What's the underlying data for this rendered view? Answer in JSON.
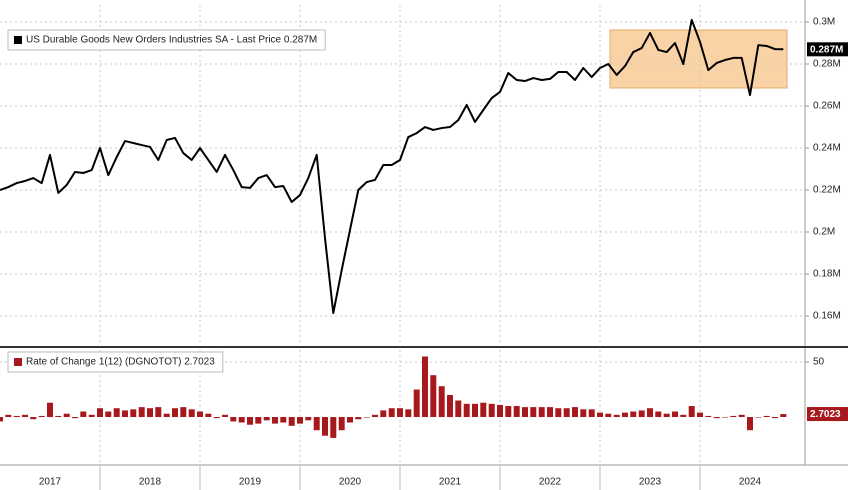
{
  "chart_data": [
    {
      "type": "line",
      "x": [
        2017,
        2017.083,
        2017.167,
        2017.25,
        2017.333,
        2017.417,
        2017.5,
        2017.583,
        2017.667,
        2017.75,
        2017.833,
        2017.917,
        2018,
        2018.083,
        2018.167,
        2018.25,
        2018.333,
        2018.417,
        2018.5,
        2018.583,
        2018.667,
        2018.75,
        2018.833,
        2018.917,
        2019,
        2019.083,
        2019.167,
        2019.25,
        2019.333,
        2019.417,
        2019.5,
        2019.583,
        2019.667,
        2019.75,
        2019.833,
        2019.917,
        2020,
        2020.083,
        2020.167,
        2020.25,
        2020.333,
        2020.417,
        2020.5,
        2020.583,
        2020.667,
        2020.75,
        2020.833,
        2020.917,
        2021,
        2021.083,
        2021.167,
        2021.25,
        2021.333,
        2021.417,
        2021.5,
        2021.583,
        2021.667,
        2021.75,
        2021.833,
        2021.917,
        2022,
        2022.083,
        2022.167,
        2022.25,
        2022.333,
        2022.417,
        2022.5,
        2022.583,
        2022.667,
        2022.75,
        2022.833,
        2022.917,
        2023,
        2023.083,
        2023.167,
        2023.25,
        2023.333,
        2023.417,
        2023.5,
        2023.583,
        2023.667,
        2023.75,
        2023.833,
        2023.917,
        2024,
        2024.083,
        2024.167,
        2024.25,
        2024.333,
        2024.417,
        2024.5,
        2024.583,
        2024.667,
        2024.75,
        2024.833
      ],
      "series": [
        {
          "name": "US Durable Goods New Orders Industries SA - Last Price 0.287M",
          "color": "#000000",
          "last_label": "0.287M",
          "values": [
            0.22,
            0.2214,
            0.2233,
            0.2243,
            0.2257,
            0.2233,
            0.2367,
            0.2186,
            0.2224,
            0.2286,
            0.2281,
            0.2295,
            0.24,
            0.2271,
            0.2357,
            0.2433,
            0.2424,
            0.2414,
            0.2405,
            0.2343,
            0.2438,
            0.2448,
            0.2376,
            0.2343,
            0.24,
            0.2343,
            0.2286,
            0.2367,
            0.2295,
            0.2214,
            0.221,
            0.2257,
            0.2271,
            0.2214,
            0.2219,
            0.2143,
            0.2176,
            0.2257,
            0.2367,
            0.1971,
            0.1614,
            0.1819,
            0.201,
            0.22,
            0.2238,
            0.2248,
            0.2319,
            0.2319,
            0.2343,
            0.2452,
            0.2471,
            0.25,
            0.2486,
            0.2495,
            0.25,
            0.2533,
            0.2605,
            0.2524,
            0.2581,
            0.2638,
            0.2667,
            0.2757,
            0.2724,
            0.2719,
            0.2733,
            0.2724,
            0.2729,
            0.2762,
            0.2762,
            0.2724,
            0.2781,
            0.2738,
            0.2781,
            0.28,
            0.2748,
            0.279,
            0.2857,
            0.2876,
            0.2948,
            0.2867,
            0.2857,
            0.29,
            0.28,
            0.301,
            0.2905,
            0.2771,
            0.2805,
            0.2819,
            0.2829,
            0.2829,
            0.2652,
            0.289,
            0.2886,
            0.2871,
            0.287
          ]
        }
      ],
      "xlim": [
        2017,
        2025.05
      ],
      "xgrid": [
        2018,
        2019,
        2020,
        2021,
        2022,
        2023,
        2024
      ],
      "ylim": [
        0.1462,
        0.3081
      ],
      "yticks": [
        {
          "value": 0.16,
          "label": "0.16M"
        },
        {
          "value": 0.18,
          "label": "0.18M"
        },
        {
          "value": 0.2,
          "label": "0.2M"
        },
        {
          "value": 0.22,
          "label": "0.22M"
        },
        {
          "value": 0.24,
          "label": "0.24M"
        },
        {
          "value": 0.26,
          "label": "0.26M"
        },
        {
          "value": 0.28,
          "label": "0.28M"
        },
        {
          "value": 0.3,
          "label": "0.3M"
        }
      ],
      "grid": true
    },
    {
      "type": "bar",
      "x": [
        2017,
        2017.083,
        2017.167,
        2017.25,
        2017.333,
        2017.417,
        2017.5,
        2017.583,
        2017.667,
        2017.75,
        2017.833,
        2017.917,
        2018,
        2018.083,
        2018.167,
        2018.25,
        2018.333,
        2018.417,
        2018.5,
        2018.583,
        2018.667,
        2018.75,
        2018.833,
        2018.917,
        2019,
        2019.083,
        2019.167,
        2019.25,
        2019.333,
        2019.417,
        2019.5,
        2019.583,
        2019.667,
        2019.75,
        2019.833,
        2019.917,
        2020,
        2020.083,
        2020.167,
        2020.25,
        2020.333,
        2020.417,
        2020.5,
        2020.583,
        2020.667,
        2020.75,
        2020.833,
        2020.917,
        2021,
        2021.083,
        2021.167,
        2021.25,
        2021.333,
        2021.417,
        2021.5,
        2021.583,
        2021.667,
        2021.75,
        2021.833,
        2021.917,
        2022,
        2022.083,
        2022.167,
        2022.25,
        2022.333,
        2022.417,
        2022.5,
        2022.583,
        2022.667,
        2022.75,
        2022.833,
        2022.917,
        2023,
        2023.083,
        2023.167,
        2023.25,
        2023.333,
        2023.417,
        2023.5,
        2023.583,
        2023.667,
        2023.75,
        2023.833,
        2023.917,
        2024,
        2024.083,
        2024.167,
        2024.25,
        2024.333,
        2024.417,
        2024.5,
        2024.583,
        2024.667,
        2024.75,
        2024.833
      ],
      "series": [
        {
          "name": "Rate of Change 1(12) (DGNOTOT) 2.7023",
          "color": "#a8191e",
          "values": [
            -4,
            2,
            1,
            2,
            -2,
            1,
            13,
            1,
            3,
            -1,
            5,
            2,
            8,
            5,
            8,
            6,
            7,
            9,
            8,
            9,
            3,
            8,
            9,
            7,
            5,
            3,
            -1,
            2,
            -4,
            -5,
            -7,
            -6,
            -3,
            -6,
            -5,
            -8,
            -6,
            -3,
            -12,
            -17,
            -19,
            -12,
            -5,
            -2,
            0,
            2,
            6,
            8,
            8,
            7,
            25,
            55,
            38,
            28,
            20,
            15,
            12,
            12,
            13,
            12,
            11,
            10,
            10,
            9,
            9,
            9,
            9,
            8,
            8,
            9,
            7,
            7,
            4,
            3,
            2,
            4,
            5,
            6,
            8,
            5,
            3,
            5,
            2,
            10,
            4,
            1,
            -1,
            0,
            1,
            2,
            -12,
            0,
            1,
            -1,
            2.7023
          ]
        }
      ],
      "xlim": [
        2017,
        2025.05
      ],
      "xgrid": [
        2018,
        2019,
        2020,
        2021,
        2022,
        2023,
        2024
      ],
      "xticks": [
        {
          "value": 2017.5,
          "label": "2017"
        },
        {
          "value": 2018.5,
          "label": "2018"
        },
        {
          "value": 2019.5,
          "label": "2019"
        },
        {
          "value": 2020.5,
          "label": "2020"
        },
        {
          "value": 2021.5,
          "label": "2021"
        },
        {
          "value": 2022.5,
          "label": "2022"
        },
        {
          "value": 2023.5,
          "label": "2023"
        },
        {
          "value": 2024.5,
          "label": "2024"
        }
      ],
      "ylim": [
        -43.6,
        60.9
      ],
      "yticks": [
        50
      ],
      "grid": true
    }
  ]
}
